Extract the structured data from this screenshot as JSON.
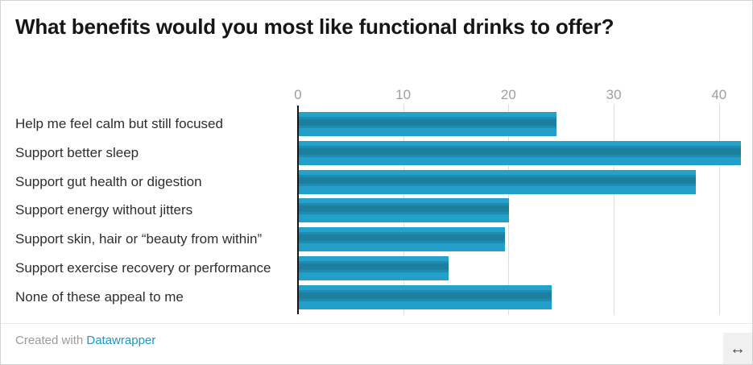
{
  "title": "What benefits would you most like functional drinks to offer?",
  "chart_data": {
    "type": "bar",
    "orientation": "horizontal",
    "title": "What benefits would you most like functional drinks to offer?",
    "categories": [
      "Help me feel calm but still focused",
      "Support better sleep",
      "Support gut health or digestion",
      "Support energy without jitters",
      "Support skin, hair or “beauty from within”",
      "Support exercise recovery or performance",
      "None of these appeal to me"
    ],
    "values": [
      24.5,
      42,
      37.7,
      20,
      19.6,
      14.2,
      24
    ],
    "x_ticks": [
      0,
      10,
      20,
      30,
      40
    ],
    "xlim": [
      0,
      43
    ],
    "xlabel": "",
    "ylabel": "",
    "grid": "vertical",
    "legend": "none",
    "colors": {
      "bar_light": "#22a0c9",
      "bar_dark": "#1d7f9e",
      "gridline": "#dedede",
      "baseline": "#141414",
      "tick_label": "#9e9e9e",
      "category_label": "#2e2e2e"
    }
  },
  "footer": {
    "created_with": "Created with ",
    "link_label": "Datawrapper"
  },
  "resize_button": {
    "icon": "↔"
  }
}
